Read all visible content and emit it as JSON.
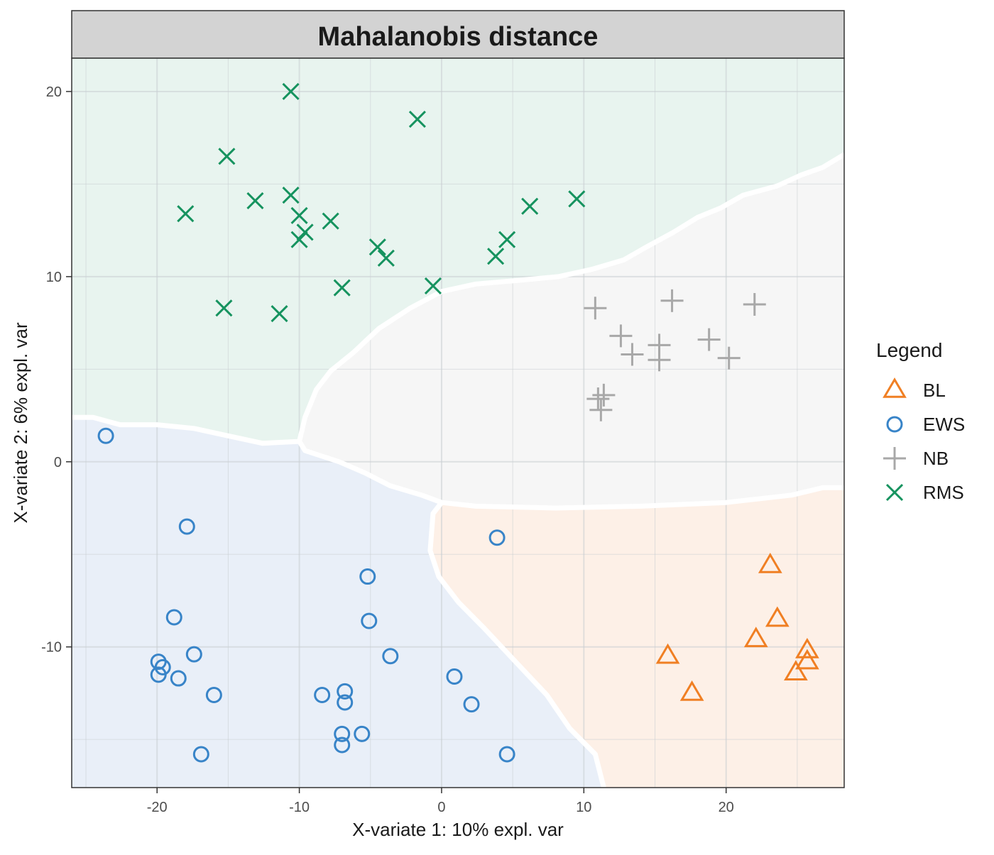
{
  "chart_data": {
    "type": "scatter",
    "title": "Mahalanobis distance",
    "xlabel": "X-variate 1: 10% expl. var",
    "ylabel": "X-variate 2: 6% expl. var",
    "xlim": [
      -26,
      28.3
    ],
    "ylim": [
      -17.6,
      21.8
    ],
    "x_ticks": [
      -20,
      -10,
      0,
      10,
      20
    ],
    "y_ticks": [
      -10,
      0,
      10,
      20
    ],
    "grid": true,
    "legend": {
      "title": "Legend",
      "placement": "right"
    },
    "series": [
      {
        "name": "BL",
        "color": "#f07f23",
        "marker": "triangle",
        "points": [
          [
            23.1,
            -5.6
          ],
          [
            23.6,
            -8.5
          ],
          [
            22.1,
            -9.6
          ],
          [
            25.7,
            -10.2
          ],
          [
            25.7,
            -10.8
          ],
          [
            24.9,
            -11.4
          ],
          [
            15.9,
            -10.5
          ],
          [
            17.6,
            -12.5
          ]
        ]
      },
      {
        "name": "EWS",
        "color": "#3884c8",
        "marker": "circle",
        "points": [
          [
            -23.6,
            1.4
          ],
          [
            -17.9,
            -3.5
          ],
          [
            -18.8,
            -8.4
          ],
          [
            -17.4,
            -10.4
          ],
          [
            -19.9,
            -10.8
          ],
          [
            -19.6,
            -11.1
          ],
          [
            -19.9,
            -11.5
          ],
          [
            -18.5,
            -11.7
          ],
          [
            -16.0,
            -12.6
          ],
          [
            -16.9,
            -15.8
          ],
          [
            -8.4,
            -12.6
          ],
          [
            -6.8,
            -12.4
          ],
          [
            -6.8,
            -13.0
          ],
          [
            -7.0,
            -14.7
          ],
          [
            -7.0,
            -15.3
          ],
          [
            -5.6,
            -14.7
          ],
          [
            -5.2,
            -6.2
          ],
          [
            -5.1,
            -8.6
          ],
          [
            -3.6,
            -10.5
          ],
          [
            0.9,
            -11.6
          ],
          [
            2.1,
            -13.1
          ],
          [
            4.6,
            -15.8
          ],
          [
            3.9,
            -4.1
          ]
        ]
      },
      {
        "name": "NB",
        "color": "#a8a8a8",
        "marker": "plus",
        "points": [
          [
            10.8,
            8.3
          ],
          [
            16.2,
            8.7
          ],
          [
            22.0,
            8.5
          ],
          [
            12.6,
            6.8
          ],
          [
            13.4,
            5.8
          ],
          [
            15.3,
            6.3
          ],
          [
            15.3,
            5.5
          ],
          [
            18.8,
            6.6
          ],
          [
            20.2,
            5.6
          ],
          [
            11.4,
            3.6
          ],
          [
            11.0,
            3.4
          ],
          [
            11.2,
            2.8
          ]
        ]
      },
      {
        "name": "RMS",
        "color": "#16935f",
        "marker": "cross",
        "points": [
          [
            -10.6,
            20.0
          ],
          [
            -1.7,
            18.5
          ],
          [
            -15.1,
            16.5
          ],
          [
            -18.0,
            13.4
          ],
          [
            -13.1,
            14.1
          ],
          [
            -10.6,
            14.4
          ],
          [
            -10.0,
            13.3
          ],
          [
            -9.6,
            12.4
          ],
          [
            -10.0,
            12.0
          ],
          [
            -7.8,
            13.0
          ],
          [
            -4.5,
            11.6
          ],
          [
            -3.9,
            11.0
          ],
          [
            -7.0,
            9.4
          ],
          [
            -0.6,
            9.5
          ],
          [
            -15.3,
            8.3
          ],
          [
            -11.4,
            8.0
          ],
          [
            3.8,
            11.1
          ],
          [
            4.6,
            12.0
          ],
          [
            6.2,
            13.8
          ],
          [
            9.5,
            14.2
          ]
        ]
      }
    ],
    "regions": [
      {
        "class": "RMS",
        "fill": "#e8f4ef",
        "polygon": [
          [
            -26,
            21.8
          ],
          [
            28.3,
            21.8
          ],
          [
            28.3,
            16.6
          ],
          [
            26.8,
            15.9
          ],
          [
            25.3,
            15.5
          ],
          [
            23.6,
            14.9
          ],
          [
            21.2,
            14.4
          ],
          [
            19.6,
            13.7
          ],
          [
            18.0,
            13.2
          ],
          [
            16.3,
            12.4
          ],
          [
            14.4,
            11.6
          ],
          [
            12.8,
            10.9
          ],
          [
            10.6,
            10.4
          ],
          [
            8.2,
            10.0
          ],
          [
            5.4,
            9.8
          ],
          [
            2.4,
            9.6
          ],
          [
            0.0,
            9.2
          ],
          [
            -2.2,
            8.3
          ],
          [
            -4.4,
            7.2
          ],
          [
            -6.2,
            5.9
          ],
          [
            -7.8,
            4.9
          ],
          [
            -8.8,
            3.9
          ],
          [
            -9.6,
            2.4
          ],
          [
            -10.0,
            1.1
          ],
          [
            -12.6,
            1.0
          ],
          [
            -15.0,
            1.4
          ],
          [
            -17.4,
            1.8
          ],
          [
            -20.0,
            2.0
          ],
          [
            -22.6,
            2.0
          ],
          [
            -24.5,
            2.4
          ],
          [
            -26,
            2.4
          ]
        ]
      },
      {
        "class": "NB",
        "fill": "#f6f6f6",
        "polygon": [
          [
            28.3,
            16.6
          ],
          [
            26.8,
            15.9
          ],
          [
            25.3,
            15.5
          ],
          [
            23.6,
            14.9
          ],
          [
            21.2,
            14.4
          ],
          [
            19.6,
            13.7
          ],
          [
            18.0,
            13.2
          ],
          [
            16.3,
            12.4
          ],
          [
            14.4,
            11.6
          ],
          [
            12.8,
            10.9
          ],
          [
            10.6,
            10.4
          ],
          [
            8.2,
            10.0
          ],
          [
            5.4,
            9.8
          ],
          [
            2.4,
            9.6
          ],
          [
            0.0,
            9.2
          ],
          [
            -2.2,
            8.3
          ],
          [
            -4.4,
            7.2
          ],
          [
            -6.2,
            5.9
          ],
          [
            -7.8,
            4.9
          ],
          [
            -8.8,
            3.9
          ],
          [
            -9.6,
            2.4
          ],
          [
            -10.0,
            1.1
          ],
          [
            -9.6,
            0.6
          ],
          [
            -7.2,
            0.0
          ],
          [
            -5.4,
            -0.6
          ],
          [
            -3.6,
            -1.3
          ],
          [
            -1.4,
            -1.8
          ],
          [
            0.0,
            -2.2
          ],
          [
            2.4,
            -2.4
          ],
          [
            8.0,
            -2.5
          ],
          [
            14.0,
            -2.4
          ],
          [
            20.0,
            -2.2
          ],
          [
            24.6,
            -1.8
          ],
          [
            26.8,
            -1.4
          ],
          [
            28.3,
            -1.4
          ]
        ]
      },
      {
        "class": "BL",
        "fill": "#fdf0e7",
        "polygon": [
          [
            0.0,
            -2.2
          ],
          [
            -0.6,
            -2.8
          ],
          [
            -0.8,
            -4.8
          ],
          [
            -0.2,
            -6.2
          ],
          [
            1.2,
            -7.6
          ],
          [
            3.0,
            -9.0
          ],
          [
            5.2,
            -10.8
          ],
          [
            7.4,
            -12.6
          ],
          [
            9.0,
            -14.4
          ],
          [
            10.8,
            -15.8
          ],
          [
            11.4,
            -17.6
          ],
          [
            28.3,
            -17.6
          ],
          [
            28.3,
            -1.4
          ],
          [
            26.8,
            -1.4
          ],
          [
            24.6,
            -1.8
          ],
          [
            20.0,
            -2.2
          ],
          [
            14.0,
            -2.4
          ],
          [
            8.0,
            -2.5
          ],
          [
            2.4,
            -2.4
          ]
        ]
      },
      {
        "class": "EWS",
        "fill": "#e9eff8",
        "polygon": [
          [
            -26,
            2.4
          ],
          [
            -24.5,
            2.4
          ],
          [
            -22.6,
            2.0
          ],
          [
            -20.0,
            2.0
          ],
          [
            -17.4,
            1.8
          ],
          [
            -15.0,
            1.4
          ],
          [
            -12.6,
            1.0
          ],
          [
            -10.0,
            1.1
          ],
          [
            -9.6,
            0.6
          ],
          [
            -7.2,
            0.0
          ],
          [
            -5.4,
            -0.6
          ],
          [
            -3.6,
            -1.3
          ],
          [
            -1.4,
            -1.8
          ],
          [
            0.0,
            -2.2
          ],
          [
            -0.6,
            -2.8
          ],
          [
            -0.8,
            -4.8
          ],
          [
            -0.2,
            -6.2
          ],
          [
            1.2,
            -7.6
          ],
          [
            3.0,
            -9.0
          ],
          [
            5.2,
            -10.8
          ],
          [
            7.4,
            -12.6
          ],
          [
            9.0,
            -14.4
          ],
          [
            10.8,
            -15.8
          ],
          [
            11.4,
            -17.6
          ],
          [
            -26,
            -17.6
          ]
        ]
      }
    ],
    "boundaries": [
      [
        [
          -26,
          2.4
        ],
        [
          -24.5,
          2.4
        ],
        [
          -22.6,
          2.0
        ],
        [
          -20.0,
          2.0
        ],
        [
          -17.4,
          1.8
        ],
        [
          -15.0,
          1.4
        ],
        [
          -12.6,
          1.0
        ],
        [
          -10.0,
          1.1
        ],
        [
          -9.6,
          2.4
        ],
        [
          -8.8,
          3.9
        ],
        [
          -7.8,
          4.9
        ],
        [
          -6.2,
          5.9
        ],
        [
          -4.4,
          7.2
        ],
        [
          -2.2,
          8.3
        ],
        [
          0.0,
          9.2
        ],
        [
          2.4,
          9.6
        ],
        [
          5.4,
          9.8
        ],
        [
          8.2,
          10.0
        ],
        [
          10.6,
          10.4
        ],
        [
          12.8,
          10.9
        ],
        [
          14.4,
          11.6
        ],
        [
          16.3,
          12.4
        ],
        [
          18.0,
          13.2
        ],
        [
          19.6,
          13.7
        ],
        [
          21.2,
          14.4
        ],
        [
          23.6,
          14.9
        ],
        [
          25.3,
          15.5
        ],
        [
          26.8,
          15.9
        ],
        [
          28.3,
          16.6
        ]
      ],
      [
        [
          -10.0,
          1.1
        ],
        [
          -9.6,
          0.6
        ],
        [
          -7.2,
          0.0
        ],
        [
          -5.4,
          -0.6
        ],
        [
          -3.6,
          -1.3
        ],
        [
          -1.4,
          -1.8
        ],
        [
          0.0,
          -2.2
        ],
        [
          2.4,
          -2.4
        ],
        [
          8.0,
          -2.5
        ],
        [
          14.0,
          -2.4
        ],
        [
          20.0,
          -2.2
        ],
        [
          24.6,
          -1.8
        ],
        [
          26.8,
          -1.4
        ],
        [
          28.3,
          -1.4
        ]
      ],
      [
        [
          0.0,
          -2.2
        ],
        [
          -0.6,
          -2.8
        ],
        [
          -0.8,
          -4.8
        ],
        [
          -0.2,
          -6.2
        ],
        [
          1.2,
          -7.6
        ],
        [
          3.0,
          -9.0
        ],
        [
          5.2,
          -10.8
        ],
        [
          7.4,
          -12.6
        ],
        [
          9.0,
          -14.4
        ],
        [
          10.8,
          -15.8
        ],
        [
          11.4,
          -17.6
        ]
      ]
    ]
  }
}
